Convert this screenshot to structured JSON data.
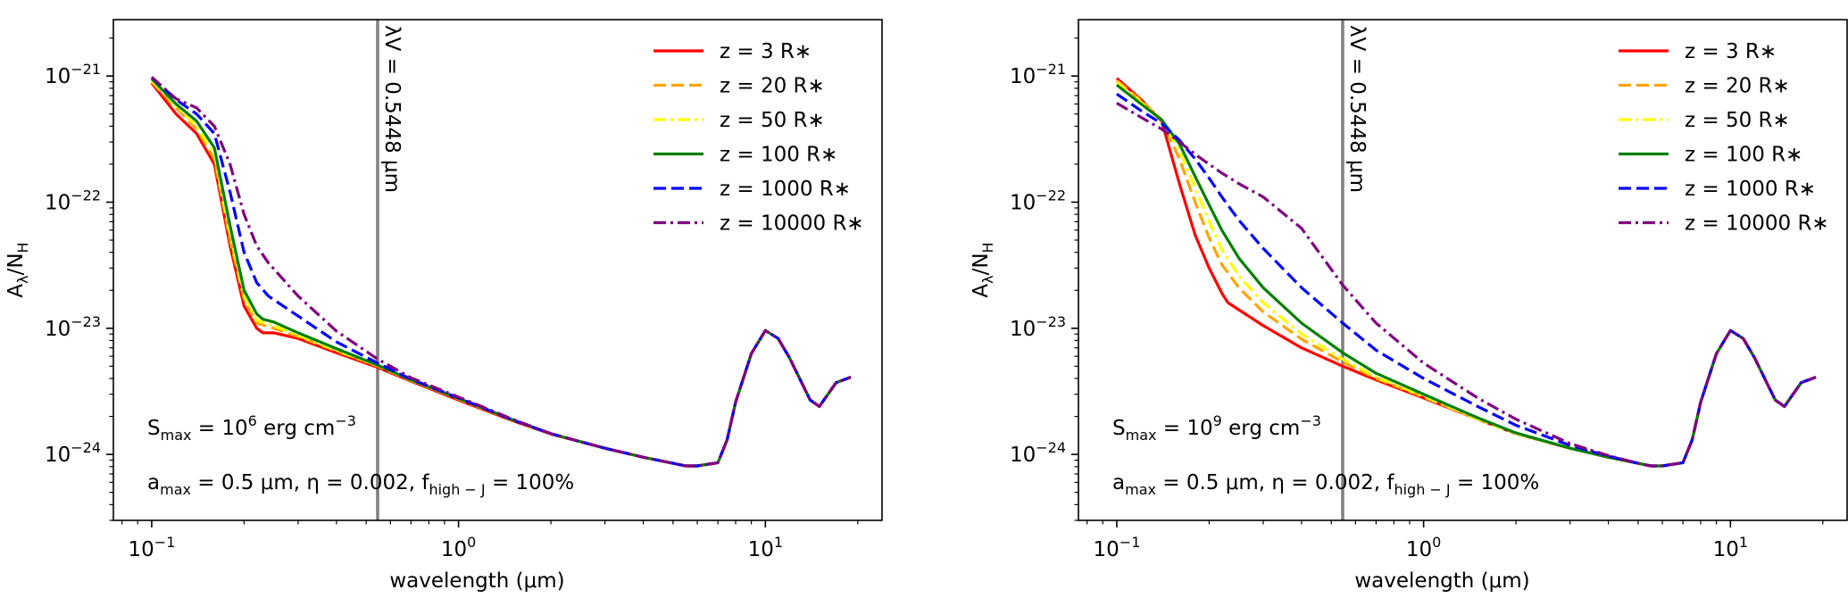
{
  "chart_data": [
    {
      "type": "line",
      "xscale": "log",
      "yscale": "log",
      "xlim": [
        0.075,
        24
      ],
      "ylim": [
        3e-25,
        2.8e-21
      ],
      "xlabel": "wavelength (μm)",
      "ylabel": {
        "base": "A",
        "sub1": "λ",
        "slash": "/N",
        "sub2": "H"
      },
      "xticks": [
        {
          "value": 0.1,
          "base": "10",
          "exp": "−1"
        },
        {
          "value": 1,
          "base": "10",
          "exp": "0"
        },
        {
          "value": 10,
          "base": "10",
          "exp": "1"
        }
      ],
      "yticks": [
        {
          "value": 1e-21,
          "base": "10",
          "exp": "−21"
        },
        {
          "value": 1e-22,
          "base": "10",
          "exp": "−22"
        },
        {
          "value": 1e-23,
          "base": "10",
          "exp": "−23"
        },
        {
          "value": 1e-24,
          "base": "10",
          "exp": "−24"
        }
      ],
      "vline": {
        "x": 0.5448,
        "color": "#808080",
        "label": "λV = 0.5448 μm"
      },
      "annotations": {
        "smax": {
          "pre": "S",
          "sub": "max",
          "eq": " = 10",
          "sup": "6",
          "post": " erg cm",
          "sup2": "−3"
        },
        "params": {
          "p1": "a",
          "s1": "max",
          "p2": " = 0.5 μm, η = 0.002, f",
          "s2": "high − J",
          "p3": " = 100%"
        }
      },
      "series": [
        {
          "name": "z = 3 R∗",
          "color": "#ff0000",
          "dash": "solid",
          "x": [
            0.1,
            0.12,
            0.14,
            0.16,
            0.18,
            0.2,
            0.22,
            0.23,
            0.25,
            0.3,
            0.4,
            0.5448,
            0.7,
            1,
            1.5,
            2,
            3,
            4,
            5,
            5.5,
            6,
            7,
            7.5,
            8,
            9,
            10,
            11,
            12,
            14,
            15,
            17,
            19
          ],
          "y": [
            8.8e-22,
            5e-22,
            3.5e-22,
            2e-22,
            4.5e-23,
            1.5e-23,
            1e-23,
            9.2e-24,
            9.2e-24,
            8.3e-24,
            6.4e-24,
            4.9e-24,
            3.8e-24,
            2.7e-24,
            1.85e-24,
            1.45e-24,
            1.12e-24,
            9.5e-25,
            8.5e-25,
            8.1e-25,
            8.1e-25,
            8.6e-25,
            1.3e-24,
            2.6e-24,
            6.3e-24,
            9.6e-24,
            8.3e-24,
            5.8e-24,
            2.7e-24,
            2.4e-24,
            3.7e-24,
            4.1e-24
          ]
        },
        {
          "name": "z = 20 R∗",
          "color": "#ffa500",
          "dash": "dashed",
          "x": [
            0.1,
            0.12,
            0.14,
            0.16,
            0.18,
            0.2,
            0.22,
            0.25,
            0.3,
            0.4,
            0.5448,
            0.7,
            1,
            1.5,
            2,
            3,
            4,
            5,
            5.5,
            6,
            7,
            7.5,
            8,
            9,
            10,
            11,
            12,
            14,
            15,
            17,
            19
          ],
          "y": [
            9e-22,
            5.6e-22,
            3.8e-22,
            2.2e-22,
            5e-23,
            1.7e-23,
            1.1e-23,
            1e-23,
            8.6e-24,
            6.6e-24,
            5e-24,
            3.85e-24,
            2.75e-24,
            1.87e-24,
            1.46e-24,
            1.12e-24,
            9.5e-25,
            8.5e-25,
            8.1e-25,
            8.1e-25,
            8.6e-25,
            1.3e-24,
            2.6e-24,
            6.3e-24,
            9.6e-24,
            8.3e-24,
            5.8e-24,
            2.7e-24,
            2.4e-24,
            3.7e-24,
            4.1e-24
          ]
        },
        {
          "name": "z = 50 R∗",
          "color": "#ffff00",
          "dash": "dashdot",
          "x": [
            0.1,
            0.12,
            0.14,
            0.16,
            0.18,
            0.2,
            0.22,
            0.25,
            0.3,
            0.4,
            0.5448,
            0.7,
            1,
            1.5,
            2,
            3,
            4,
            5,
            5.5,
            6,
            7,
            7.5,
            8,
            9,
            10,
            11,
            12,
            14,
            15,
            17,
            19
          ],
          "y": [
            9.2e-22,
            5.8e-22,
            4e-22,
            2.4e-22,
            5.5e-23,
            1.8e-23,
            1.15e-23,
            1.05e-23,
            8.8e-24,
            6.7e-24,
            5.05e-24,
            3.88e-24,
            2.76e-24,
            1.88e-24,
            1.46e-24,
            1.12e-24,
            9.5e-25,
            8.5e-25,
            8.1e-25,
            8.1e-25,
            8.6e-25,
            1.3e-24,
            2.6e-24,
            6.3e-24,
            9.6e-24,
            8.3e-24,
            5.8e-24,
            2.7e-24,
            2.4e-24,
            3.7e-24,
            4.1e-24
          ]
        },
        {
          "name": "z = 100 R∗",
          "color": "#008000",
          "dash": "solid",
          "x": [
            0.1,
            0.12,
            0.14,
            0.16,
            0.18,
            0.2,
            0.22,
            0.23,
            0.25,
            0.3,
            0.4,
            0.5448,
            0.7,
            1,
            1.5,
            2,
            3,
            4,
            5,
            5.5,
            6,
            7,
            7.5,
            8,
            9,
            10,
            11,
            12,
            14,
            15,
            17,
            19
          ],
          "y": [
            9.5e-22,
            6e-22,
            4.4e-22,
            2.7e-22,
            6.5e-23,
            2e-23,
            1.3e-23,
            1.18e-23,
            1.12e-23,
            9.2e-24,
            6.9e-24,
            5.1e-24,
            3.9e-24,
            2.78e-24,
            1.88e-24,
            1.46e-24,
            1.12e-24,
            9.5e-25,
            8.5e-25,
            8.1e-25,
            8.1e-25,
            8.6e-25,
            1.3e-24,
            2.6e-24,
            6.3e-24,
            9.6e-24,
            8.3e-24,
            5.8e-24,
            2.7e-24,
            2.4e-24,
            3.7e-24,
            4.1e-24
          ]
        },
        {
          "name": "z = 1000 R∗",
          "color": "#0000ff",
          "dash": "dashed",
          "x": [
            0.1,
            0.12,
            0.14,
            0.16,
            0.18,
            0.2,
            0.22,
            0.24,
            0.3,
            0.4,
            0.5448,
            0.7,
            1,
            1.5,
            2,
            3,
            4,
            5,
            5.5,
            6,
            7,
            7.5,
            8,
            9,
            10,
            11,
            12,
            14,
            15,
            17,
            19
          ],
          "y": [
            9.8e-22,
            6.5e-22,
            5e-22,
            3.5e-22,
            1.2e-22,
            4e-23,
            2.3e-23,
            1.8e-23,
            1.25e-23,
            7.8e-24,
            5.3e-24,
            3.95e-24,
            2.8e-24,
            1.88e-24,
            1.46e-24,
            1.12e-24,
            9.5e-25,
            8.5e-25,
            8.1e-25,
            8.1e-25,
            8.6e-25,
            1.3e-24,
            2.6e-24,
            6.3e-24,
            9.6e-24,
            8.3e-24,
            5.8e-24,
            2.7e-24,
            2.4e-24,
            3.7e-24,
            4.1e-24
          ]
        },
        {
          "name": "z = 10000 R∗",
          "color": "#800080",
          "dash": "dashdot",
          "x": [
            0.1,
            0.12,
            0.14,
            0.16,
            0.18,
            0.2,
            0.22,
            0.24,
            0.3,
            0.4,
            0.5448,
            0.7,
            1,
            1.5,
            2,
            3,
            4,
            5,
            5.5,
            6,
            7,
            7.5,
            8,
            9,
            10,
            11,
            12,
            14,
            15,
            17,
            19
          ],
          "y": [
            9.8e-22,
            6.6e-22,
            5.6e-22,
            4e-22,
            2e-22,
            8e-23,
            4.5e-23,
            3.3e-23,
            1.8e-23,
            9.5e-24,
            5.7e-24,
            4.05e-24,
            2.85e-24,
            1.9e-24,
            1.46e-24,
            1.12e-24,
            9.5e-25,
            8.5e-25,
            8.1e-25,
            8.1e-25,
            8.6e-25,
            1.3e-24,
            2.6e-24,
            6.3e-24,
            9.6e-24,
            8.3e-24,
            5.8e-24,
            2.7e-24,
            2.4e-24,
            3.7e-24,
            4.1e-24
          ]
        }
      ]
    },
    {
      "type": "line",
      "xscale": "log",
      "yscale": "log",
      "xlim": [
        0.075,
        24
      ],
      "ylim": [
        3e-25,
        2.8e-21
      ],
      "xlabel": "wavelength (μm)",
      "ylabel": {
        "base": "A",
        "sub1": "λ",
        "slash": "/N",
        "sub2": "H"
      },
      "xticks": [
        {
          "value": 0.1,
          "base": "10",
          "exp": "−1"
        },
        {
          "value": 1,
          "base": "10",
          "exp": "0"
        },
        {
          "value": 10,
          "base": "10",
          "exp": "1"
        }
      ],
      "yticks": [
        {
          "value": 1e-21,
          "base": "10",
          "exp": "−21"
        },
        {
          "value": 1e-22,
          "base": "10",
          "exp": "−22"
        },
        {
          "value": 1e-23,
          "base": "10",
          "exp": "−23"
        },
        {
          "value": 1e-24,
          "base": "10",
          "exp": "−24"
        }
      ],
      "vline": {
        "x": 0.5448,
        "color": "#808080",
        "label": "λV = 0.5448 μm"
      },
      "annotations": {
        "smax": {
          "pre": "S",
          "sub": "max",
          "eq": " = 10",
          "sup": "9",
          "post": " erg cm",
          "sup2": "−3"
        },
        "params": {
          "p1": "a",
          "s1": "max",
          "p2": " = 0.5 μm, η = 0.002, f",
          "s2": "high − J",
          "p3": " = 100%"
        }
      },
      "series": [
        {
          "name": "z = 3 R∗",
          "color": "#ff0000",
          "dash": "solid",
          "x": [
            0.1,
            0.12,
            0.14,
            0.16,
            0.18,
            0.2,
            0.22,
            0.23,
            0.3,
            0.4,
            0.5448,
            0.7,
            1,
            1.5,
            2,
            3,
            4,
            5,
            5.5,
            6,
            7,
            7.5,
            8,
            9,
            10,
            11,
            12,
            14,
            15,
            17,
            19
          ],
          "y": [
            9.6e-22,
            6.5e-22,
            4.4e-22,
            1.4e-22,
            5.5e-23,
            3e-23,
            1.9e-23,
            1.6e-23,
            1.05e-23,
            7e-24,
            5e-24,
            3.9e-24,
            2.8e-24,
            1.9e-24,
            1.46e-24,
            1.12e-24,
            9.5e-25,
            8.5e-25,
            8.1e-25,
            8.1e-25,
            8.6e-25,
            1.3e-24,
            2.6e-24,
            6.3e-24,
            9.6e-24,
            8.3e-24,
            5.8e-24,
            2.7e-24,
            2.4e-24,
            3.7e-24,
            4.1e-24
          ]
        },
        {
          "name": "z = 20 R∗",
          "color": "#ffa500",
          "dash": "dashed",
          "x": [
            0.1,
            0.12,
            0.14,
            0.16,
            0.18,
            0.2,
            0.22,
            0.25,
            0.3,
            0.4,
            0.5448,
            0.7,
            1,
            1.5,
            2,
            3,
            4,
            5,
            5.5,
            6,
            7,
            7.5,
            8,
            9,
            10,
            11,
            12,
            14,
            15,
            17,
            19
          ],
          "y": [
            9.2e-22,
            6.4e-22,
            4.5e-22,
            2.2e-22,
            1e-22,
            5.2e-23,
            3.2e-23,
            2.1e-23,
            1.35e-23,
            8.2e-24,
            5.4e-24,
            4e-24,
            2.85e-24,
            1.9e-24,
            1.46e-24,
            1.12e-24,
            9.5e-25,
            8.5e-25,
            8.1e-25,
            8.1e-25,
            8.6e-25,
            1.3e-24,
            2.6e-24,
            6.3e-24,
            9.6e-24,
            8.3e-24,
            5.8e-24,
            2.7e-24,
            2.4e-24,
            3.7e-24,
            4.1e-24
          ]
        },
        {
          "name": "z = 50 R∗",
          "color": "#ffff00",
          "dash": "dashdot",
          "x": [
            0.1,
            0.12,
            0.14,
            0.16,
            0.18,
            0.2,
            0.22,
            0.25,
            0.3,
            0.4,
            0.5448,
            0.7,
            1,
            1.5,
            2,
            3,
            4,
            5,
            5.5,
            6,
            7,
            7.5,
            8,
            9,
            10,
            11,
            12,
            14,
            15,
            17,
            19
          ],
          "y": [
            8.9e-22,
            6.2e-22,
            4.5e-22,
            2.6e-22,
            1.3e-22,
            7e-23,
            4.2e-23,
            2.6e-23,
            1.6e-23,
            9e-24,
            5.7e-24,
            4.1e-24,
            2.9e-24,
            1.9e-24,
            1.46e-24,
            1.12e-24,
            9.5e-25,
            8.5e-25,
            8.1e-25,
            8.1e-25,
            8.6e-25,
            1.3e-24,
            2.6e-24,
            6.3e-24,
            9.6e-24,
            8.3e-24,
            5.8e-24,
            2.7e-24,
            2.4e-24,
            3.7e-24,
            4.1e-24
          ]
        },
        {
          "name": "z = 100 R∗",
          "color": "#008000",
          "dash": "solid",
          "x": [
            0.1,
            0.12,
            0.14,
            0.16,
            0.18,
            0.2,
            0.22,
            0.25,
            0.3,
            0.4,
            0.5448,
            0.7,
            1,
            1.5,
            2,
            3,
            4,
            5,
            5.5,
            6,
            7,
            7.5,
            8,
            9,
            10,
            11,
            12,
            14,
            15,
            17,
            19
          ],
          "y": [
            8.5e-22,
            6e-22,
            4.5e-22,
            2.9e-22,
            1.6e-22,
            9.5e-23,
            6e-23,
            3.6e-23,
            2.1e-23,
            1.1e-23,
            6.4e-24,
            4.4e-24,
            3e-24,
            1.95e-24,
            1.48e-24,
            1.12e-24,
            9.5e-25,
            8.5e-25,
            8.1e-25,
            8.1e-25,
            8.6e-25,
            1.3e-24,
            2.6e-24,
            6.3e-24,
            9.6e-24,
            8.3e-24,
            5.8e-24,
            2.7e-24,
            2.4e-24,
            3.7e-24,
            4.1e-24
          ]
        },
        {
          "name": "z = 1000 R∗",
          "color": "#0000ff",
          "dash": "dashed",
          "x": [
            0.1,
            0.12,
            0.14,
            0.16,
            0.18,
            0.2,
            0.22,
            0.25,
            0.3,
            0.4,
            0.5448,
            0.7,
            1,
            1.5,
            2,
            3,
            4,
            5,
            5.5,
            6,
            7,
            7.5,
            8,
            9,
            10,
            11,
            12,
            14,
            15,
            17,
            19
          ],
          "y": [
            7.2e-22,
            5.3e-22,
            4.2e-22,
            3.1e-22,
            2.2e-22,
            1.55e-22,
            1.1e-22,
            7.2e-23,
            4.3e-23,
            2.1e-23,
            1.1e-23,
            6.7e-24,
            4e-24,
            2.4e-24,
            1.7e-24,
            1.18e-24,
            9.7e-25,
            8.5e-25,
            8.1e-25,
            8.1e-25,
            8.6e-25,
            1.3e-24,
            2.6e-24,
            6.3e-24,
            9.6e-24,
            8.3e-24,
            5.8e-24,
            2.7e-24,
            2.4e-24,
            3.7e-24,
            4.1e-24
          ]
        },
        {
          "name": "z = 10000 R∗",
          "color": "#800080",
          "dash": "dashdot",
          "x": [
            0.1,
            0.12,
            0.14,
            0.16,
            0.18,
            0.2,
            0.22,
            0.25,
            0.3,
            0.4,
            0.5448,
            0.7,
            1,
            1.5,
            2,
            3,
            4,
            5,
            5.5,
            6,
            7,
            7.5,
            8,
            9,
            10,
            11,
            12,
            14,
            15,
            17,
            19
          ],
          "y": [
            6.1e-22,
            4.7e-22,
            3.8e-22,
            3e-22,
            2.4e-22,
            2e-22,
            1.7e-22,
            1.4e-22,
            1.1e-22,
            6.2e-23,
            2.2e-23,
            1.1e-23,
            5.3e-24,
            2.8e-24,
            1.9e-24,
            1.22e-24,
            9.8e-25,
            8.5e-25,
            8.1e-25,
            8.1e-25,
            8.6e-25,
            1.3e-24,
            2.6e-24,
            6.3e-24,
            9.6e-24,
            8.3e-24,
            5.8e-24,
            2.7e-24,
            2.4e-24,
            3.7e-24,
            4.1e-24
          ]
        }
      ]
    }
  ]
}
